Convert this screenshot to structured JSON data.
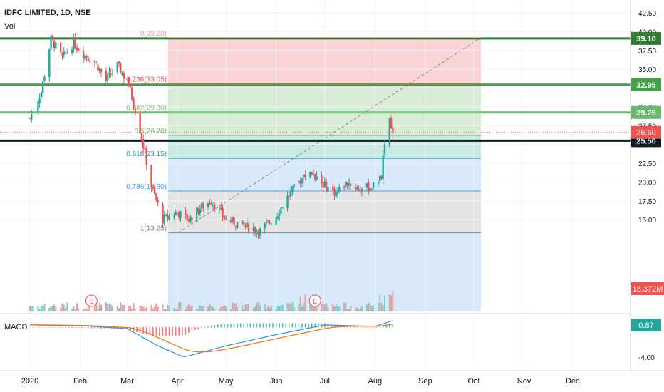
{
  "header": {
    "symbol": "IDFC LIMITED, 1D, NSE",
    "volume_label": "Vol"
  },
  "macd_label": "MACD",
  "colors": {
    "up": "#26a69a",
    "down": "#ef5350",
    "level_dark_green": "#2e7d32",
    "level_green": "#43a047",
    "level_light_green": "#66bb6a",
    "level_black": "#0d1b24",
    "macd_line": "#2196f3",
    "signal_line": "#ff6d00",
    "fib_red_zone": "#fbd5d5",
    "fib_green_zone": "#d8ecd5",
    "fib_teal_zone": "#cbe9e3",
    "fib_blue_zone": "#d7e9fb",
    "fib_gray_zone": "#e4e4e4"
  },
  "price_axis": {
    "ticks": [
      "42.50",
      "40.00",
      "37.50",
      "35.00",
      "32.50",
      "30.00",
      "27.50",
      "25.00",
      "22.50",
      "20.00",
      "17.50",
      "15.00"
    ]
  },
  "macd_axis": {
    "ticks": [
      "0.00",
      "-4.00"
    ]
  },
  "x_axis": {
    "ticks": [
      "2020",
      "Feb",
      "Mar",
      "Apr",
      "May",
      "Jun",
      "Jul",
      "Aug",
      "Sep",
      "Oct",
      "Nov",
      "Dec"
    ]
  },
  "levels": [
    {
      "price": 39.1,
      "label": "39.10",
      "color": "level_dark_green"
    },
    {
      "price": 32.95,
      "label": "32.95",
      "color": "level_green"
    },
    {
      "price": 29.25,
      "label": "29.25",
      "color": "level_light_green"
    },
    {
      "price": 25.5,
      "label": "25.50",
      "color": "level_black"
    }
  ],
  "last_price": {
    "value": 26.6,
    "label": "26.60"
  },
  "volume_badge": "18.372M",
  "macd_badge": "0.87",
  "fib_levels": [
    {
      "ratio": "0",
      "price": 39.2,
      "text": "0(39.20)"
    },
    {
      "ratio": "0.236",
      "price": 33.05,
      "text": "0.236(33.05)"
    },
    {
      "ratio": "0.382",
      "price": 29.3,
      "text": "0.382(29.30)"
    },
    {
      "ratio": "0.5",
      "price": 26.2,
      "text": "0.5(26.20)"
    },
    {
      "ratio": "0.618",
      "price": 23.15,
      "text": "0.618(23.15)"
    },
    {
      "ratio": "0.786",
      "price": 18.8,
      "text": "0.786(18.80)"
    },
    {
      "ratio": "1",
      "price": 13.25,
      "text": "1(13.25)"
    }
  ],
  "earnings_markers": [
    "E",
    "E"
  ],
  "chart_data": {
    "type": "candlestick",
    "title": "IDFC LIMITED, 1D, NSE",
    "ylim": [
      11.5,
      43.5
    ],
    "x_range": [
      "2020-01-01",
      "2020-12-31"
    ],
    "series": [
      {
        "name": "price_close_approx",
        "points": [
          [
            "2020-01-01",
            28.5
          ],
          [
            "2020-01-08",
            32.0
          ],
          [
            "2020-01-14",
            39.0
          ],
          [
            "2020-01-21",
            36.5
          ],
          [
            "2020-01-28",
            38.5
          ],
          [
            "2020-02-03",
            37.0
          ],
          [
            "2020-02-10",
            36.0
          ],
          [
            "2020-02-17",
            33.5
          ],
          [
            "2020-02-24",
            35.5
          ],
          [
            "2020-03-02",
            33.0
          ],
          [
            "2020-03-09",
            27.0
          ],
          [
            "2020-03-16",
            19.5
          ],
          [
            "2020-03-23",
            15.0
          ],
          [
            "2020-04-01",
            16.0
          ],
          [
            "2020-04-08",
            15.0
          ],
          [
            "2020-04-15",
            16.5
          ],
          [
            "2020-04-22",
            17.5
          ],
          [
            "2020-05-01",
            15.0
          ],
          [
            "2020-05-08",
            14.5
          ],
          [
            "2020-05-15",
            14.0
          ],
          [
            "2020-05-22",
            13.5
          ],
          [
            "2020-06-01",
            15.5
          ],
          [
            "2020-06-08",
            18.0
          ],
          [
            "2020-06-15",
            20.0
          ],
          [
            "2020-06-22",
            21.5
          ],
          [
            "2020-07-01",
            19.5
          ],
          [
            "2020-07-08",
            18.5
          ],
          [
            "2020-07-15",
            20.0
          ],
          [
            "2020-07-22",
            19.0
          ],
          [
            "2020-08-01",
            19.5
          ],
          [
            "2020-08-05",
            21.0
          ],
          [
            "2020-08-07",
            25.5
          ],
          [
            "2020-08-10",
            28.5
          ],
          [
            "2020-08-12",
            26.6
          ]
        ]
      },
      {
        "name": "MACD",
        "points": [
          [
            "2020-01-01",
            0.3
          ],
          [
            "2020-02-01",
            0.2
          ],
          [
            "2020-03-01",
            -0.2
          ],
          [
            "2020-03-20",
            -2.5
          ],
          [
            "2020-04-05",
            -4.0
          ],
          [
            "2020-05-01",
            -2.5
          ],
          [
            "2020-06-01",
            -1.0
          ],
          [
            "2020-07-01",
            0.3
          ],
          [
            "2020-08-01",
            0.1
          ],
          [
            "2020-08-12",
            0.87
          ]
        ]
      }
    ]
  }
}
